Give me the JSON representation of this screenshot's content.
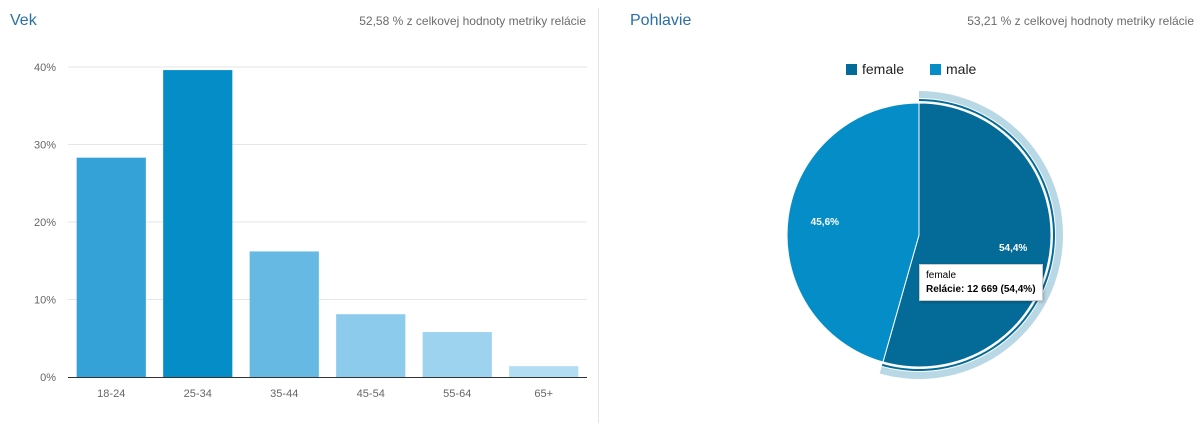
{
  "age_panel": {
    "title": "Vek",
    "subtitle": "52,58 % z celkovej hodnoty metriky relácie"
  },
  "gender_panel": {
    "title": "Pohlavie",
    "subtitle": "53,21 % z celkovej hodnoty metriky relácie",
    "tooltip": {
      "category": "female",
      "metric_label": "Relácie:",
      "metric_value": "12 669 (54,4%)"
    }
  },
  "chart_data": [
    {
      "type": "bar",
      "title": "Vek",
      "categories": [
        "18-24",
        "25-34",
        "35-44",
        "45-54",
        "55-64",
        "65+"
      ],
      "values": [
        28.3,
        39.6,
        16.2,
        8.1,
        5.8,
        1.4
      ],
      "ylim": [
        0,
        40
      ],
      "yticks": [
        "0%",
        "10%",
        "20%",
        "30%",
        "40%"
      ],
      "grid": true,
      "colors": [
        "#34a2d6",
        "#058dc7",
        "#65b9e2",
        "#8dcbec",
        "#9dd3ef",
        "#b3ddf3"
      ]
    },
    {
      "type": "pie",
      "title": "Pohlavie",
      "labels": [
        "female",
        "male"
      ],
      "values": [
        54.4,
        45.6
      ],
      "value_labels": [
        "54,4%",
        "45,6%"
      ],
      "colors": [
        "#046b99",
        "#058dc7"
      ],
      "highlighted": "female",
      "legend": "top"
    }
  ]
}
